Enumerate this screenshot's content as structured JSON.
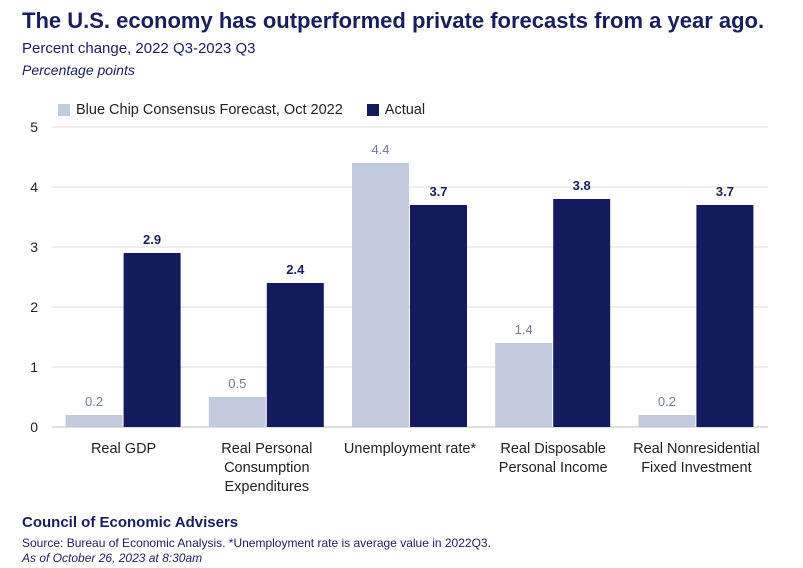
{
  "title": "The U.S. economy has outperformed private forecasts from a year ago.",
  "subtitle": "Percent change, 2022 Q3-2023 Q3",
  "unit_label": "Percentage points",
  "colors": {
    "forecast": "#c2cadd",
    "actual": "#131a5e",
    "grid": "#dedede",
    "label_forecast": "#6f7a9c",
    "label_actual": "#1a1f5c"
  },
  "chart_data": {
    "type": "bar",
    "title": "The U.S. economy has outperformed private forecasts from a year ago.",
    "xlabel": "",
    "ylabel": "",
    "ylim": [
      0,
      5
    ],
    "yticks": [
      0,
      1,
      2,
      3,
      4,
      5
    ],
    "grid": true,
    "legend_position": "top-left",
    "categories": [
      [
        "Real GDP"
      ],
      [
        "Real Personal",
        "Consumption",
        "Expenditures"
      ],
      [
        "Unemployment rate*"
      ],
      [
        "Real Disposable",
        "Personal Income"
      ],
      [
        "Real Nonresidential",
        "Fixed Investment"
      ]
    ],
    "series": [
      {
        "name": "Blue Chip Consensus Forecast, Oct 2022",
        "values": [
          0.2,
          0.5,
          4.4,
          1.4,
          0.2
        ],
        "labels": [
          "0.2",
          "0.5",
          "4.4",
          "1.4",
          "0.2"
        ]
      },
      {
        "name": "Actual",
        "values": [
          2.9,
          2.4,
          3.7,
          3.8,
          3.7
        ],
        "labels": [
          "2.9",
          "2.4",
          "3.7",
          "3.8",
          "3.7"
        ]
      }
    ]
  },
  "footer": {
    "org": "Council of Economic Advisers",
    "source": "Source: Bureau of Economic Analysis. *Unemployment rate is average value in 2022Q3.",
    "date": "As of October 26, 2023 at 8:30am"
  }
}
